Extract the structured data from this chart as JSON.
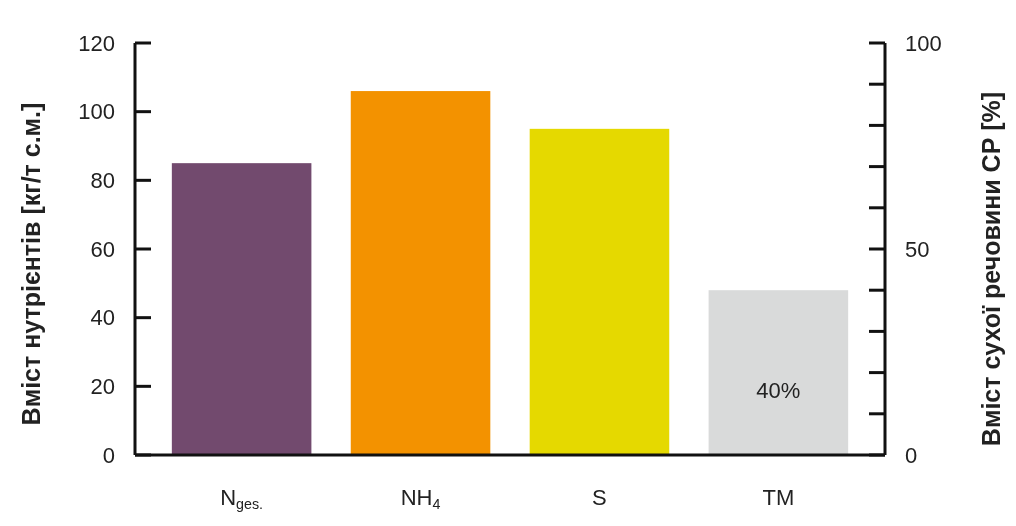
{
  "chart_data": {
    "type": "bar",
    "categories": [
      "N$_{ges.}$",
      "NH$_{4}$",
      "S",
      "TM"
    ],
    "series": [
      {
        "values": [
          85,
          106,
          95,
          null
        ],
        "colors": [
          "#724a6e",
          "#f39200",
          "#e5d900",
          null
        ]
      },
      {
        "axis": "y2",
        "values": [
          null,
          null,
          null,
          40
        ],
        "color": "#d9dada",
        "value_labels": [
          null,
          null,
          null,
          "40%"
        ]
      }
    ],
    "ylabel": "Вміст нутрієнтів [кг/т с.м.]",
    "y2label": "Вміст сухої речовини СР [%]",
    "ylim": [
      0,
      120
    ],
    "yticks": [
      0,
      20,
      40,
      60,
      80,
      100,
      120
    ],
    "y2lim": [
      0,
      100
    ],
    "y2ticks": [
      0,
      {
        "value": 10,
        "label": null
      },
      {
        "value": 20,
        "label": null
      },
      {
        "value": 30,
        "label": null
      },
      {
        "value": 40,
        "label": null
      },
      50,
      {
        "value": 60,
        "label": null
      },
      {
        "value": 70,
        "label": null
      },
      {
        "value": 80,
        "label": null
      },
      {
        "value": 90,
        "label": null
      },
      100
    ],
    "grid": false
  }
}
